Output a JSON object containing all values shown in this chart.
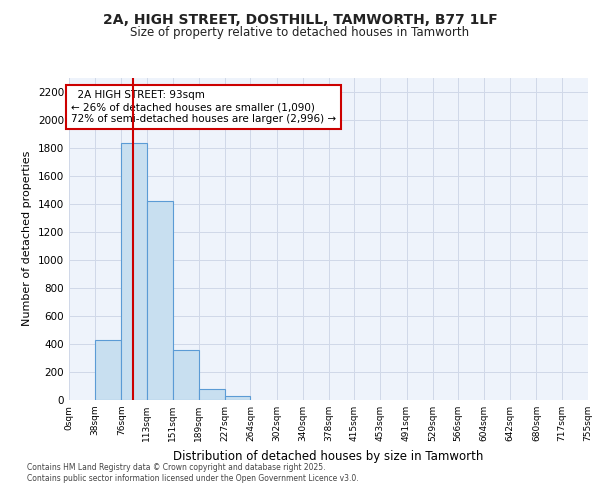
{
  "title_line1": "2A, HIGH STREET, DOSTHILL, TAMWORTH, B77 1LF",
  "title_line2": "Size of property relative to detached houses in Tamworth",
  "xlabel": "Distribution of detached houses by size in Tamworth",
  "ylabel": "Number of detached properties",
  "annotation_title": "2A HIGH STREET: 93sqm",
  "annotation_line1": "← 26% of detached houses are smaller (1,090)",
  "annotation_line2": "72% of semi-detached houses are larger (2,996) →",
  "footer_line1": "Contains HM Land Registry data © Crown copyright and database right 2025.",
  "footer_line2": "Contains public sector information licensed under the Open Government Licence v3.0.",
  "property_size_sqm": 93,
  "bar_bins": [
    0,
    38,
    76,
    113,
    151,
    189,
    227,
    264,
    302,
    340,
    378,
    415,
    453,
    491,
    529,
    566,
    604,
    642,
    680,
    717,
    755
  ],
  "bar_heights": [
    0,
    430,
    1830,
    1420,
    360,
    75,
    25,
    0,
    0,
    0,
    0,
    0,
    0,
    0,
    0,
    0,
    0,
    0,
    0,
    0
  ],
  "bar_color": "#c8dff0",
  "bar_edge_color": "#5b9bd5",
  "vline_color": "#cc0000",
  "annotation_box_color": "#cc0000",
  "grid_color": "#d0d8e8",
  "background_color": "#eef3fb",
  "ylim": [
    0,
    2300
  ],
  "yticks": [
    0,
    200,
    400,
    600,
    800,
    1000,
    1200,
    1400,
    1600,
    1800,
    2000,
    2200
  ]
}
